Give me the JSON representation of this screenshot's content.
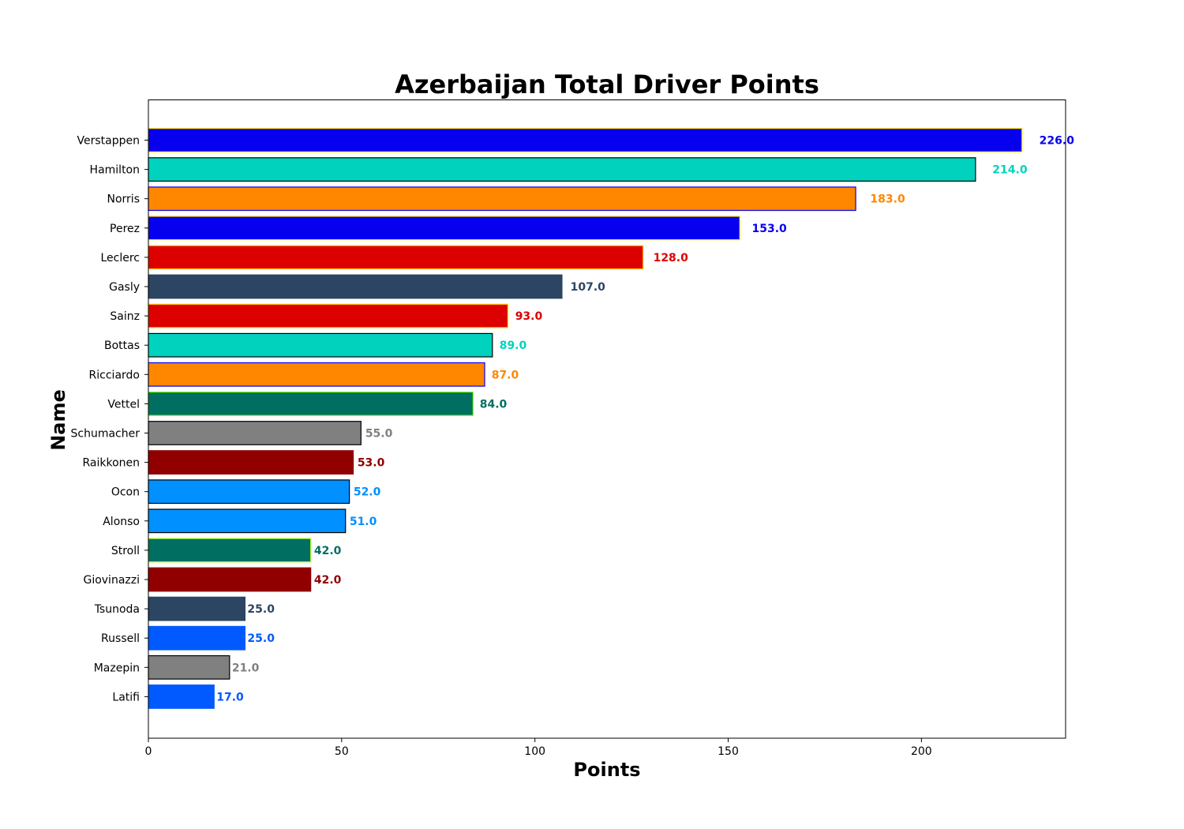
{
  "chart_data": {
    "type": "bar",
    "orientation": "horizontal",
    "title": "Azerbaijan Total Driver Points",
    "xlabel": "Points",
    "ylabel": "Name",
    "xlim": [
      0,
      237.3
    ],
    "xticks": [
      0,
      50,
      100,
      150,
      200
    ],
    "grid": false,
    "legend": "none",
    "categories": [
      "Verstappen",
      "Hamilton",
      "Norris",
      "Perez",
      "Leclerc",
      "Gasly",
      "Sainz",
      "Bottas",
      "Ricciardo",
      "Vettel",
      "Schumacher",
      "Raikkonen",
      "Ocon",
      "Alonso",
      "Stroll",
      "Giovinazzi",
      "Tsunoda",
      "Russell",
      "Mazepin",
      "Latifi"
    ],
    "values": [
      226,
      214,
      183,
      153,
      128,
      107,
      93,
      89,
      87,
      84,
      55,
      53,
      52,
      51,
      42,
      42,
      25,
      25,
      21,
      17
    ],
    "value_labels": [
      "226.0",
      "214.0",
      "183.0",
      "153.0",
      "128.0",
      "107.0",
      "93.0",
      "89.0",
      "87.0",
      "84.0",
      "55.0",
      "53.0",
      "52.0",
      "51.0",
      "42.0",
      "42.0",
      "25.0",
      "25.0",
      "21.0",
      "17.0"
    ],
    "colors": [
      "#0600EF",
      "#00D2BE",
      "#FF8700",
      "#0600EF",
      "#DC0000",
      "#2B4562",
      "#DC0000",
      "#00D2BE",
      "#FF8700",
      "#006F62",
      "#808080",
      "#900000",
      "#0090FF",
      "#0090FF",
      "#006F62",
      "#900000",
      "#2B4562",
      "#005AFF",
      "#808080",
      "#005AFF"
    ],
    "edge_colors": [
      "#FFD700",
      "#000000",
      "#0600EF",
      "#FFD700",
      "#FFD700",
      "#2B4562",
      "#FFD700",
      "#000000",
      "#0600EF",
      "#7CFC00",
      "#000000",
      "#900000",
      "#000000",
      "#000000",
      "#ADFF2F",
      "#900000",
      "#2B4562",
      "#005AFF",
      "#000000",
      "#005AFF"
    ]
  }
}
